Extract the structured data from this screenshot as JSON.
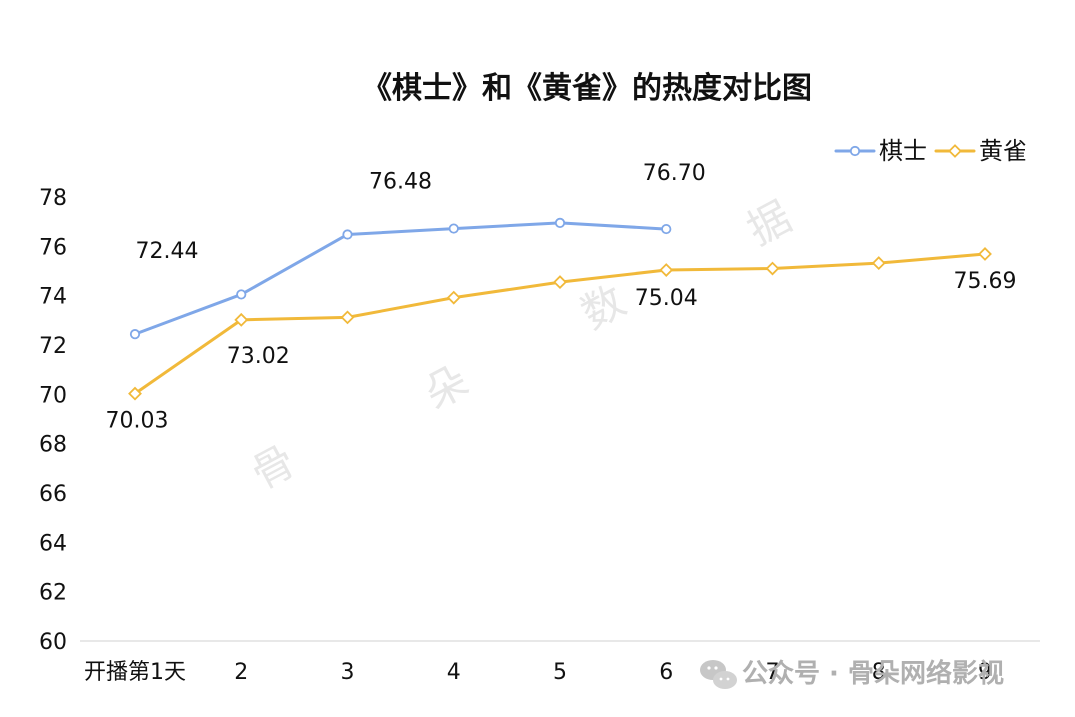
{
  "chart_data": {
    "type": "line",
    "title": "《棋士》和《黄雀》的热度对比图",
    "categories": [
      "开播第1天",
      "2",
      "3",
      "4",
      "5",
      "6",
      "7",
      "8",
      "9"
    ],
    "ylim": [
      60,
      78
    ],
    "yticks": [
      "60",
      "62",
      "64",
      "66",
      "68",
      "70",
      "72",
      "74",
      "76",
      "78"
    ],
    "legend_position": "top-right",
    "grid": false,
    "series": [
      {
        "name": "棋士",
        "color": "#7fa7e8",
        "marker_fill": "#ffffff",
        "values": [
          72.44,
          74.05,
          76.48,
          76.72,
          76.95,
          76.7,
          null,
          null,
          null
        ],
        "label_texts": [
          "72.44",
          "",
          "76.48",
          "",
          "",
          "76.70",
          "",
          "",
          ""
        ]
      },
      {
        "name": "黄雀",
        "color": "#f1b93a",
        "marker_fill": "#ffffff",
        "values": [
          70.03,
          73.02,
          73.12,
          73.92,
          74.55,
          75.04,
          75.1,
          75.32,
          75.69
        ],
        "label_texts": [
          "70.03",
          "73.02",
          "",
          "",
          "",
          "75.04",
          "",
          "",
          "75.69"
        ]
      }
    ]
  },
  "watermark": {
    "chars": [
      "骨",
      "朵",
      "数",
      "据"
    ]
  },
  "footer": {
    "text": "公众号 · 骨朵网络影视"
  }
}
